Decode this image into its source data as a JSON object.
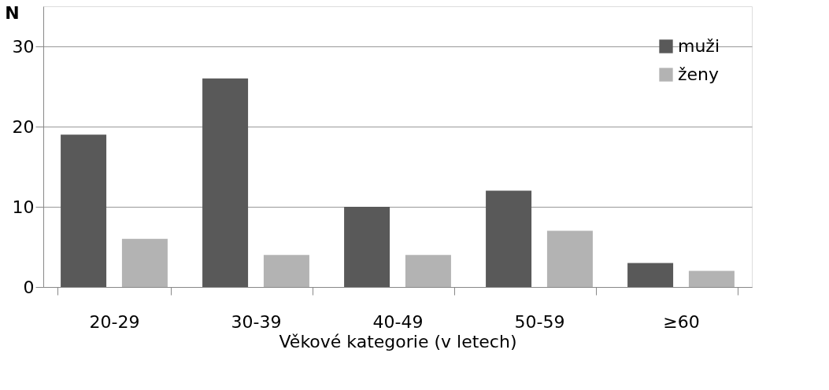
{
  "chart_data": {
    "type": "bar",
    "xlabel": "Věkové kategorie (v letech)",
    "ylabel": "N",
    "categories": [
      "20-29",
      "30-39",
      "40-49",
      "50-59",
      "≥60"
    ],
    "series": [
      {
        "name": "muži",
        "color": "#595959",
        "values": [
          19,
          26,
          10,
          12,
          3
        ]
      },
      {
        "name": "ženy",
        "color": "#b3b3b3",
        "values": [
          6,
          4,
          4,
          7,
          2
        ]
      }
    ],
    "ylim": [
      0,
      35
    ],
    "yticks": [
      0,
      10,
      20,
      30
    ],
    "grid": "y",
    "legend": "top right"
  }
}
